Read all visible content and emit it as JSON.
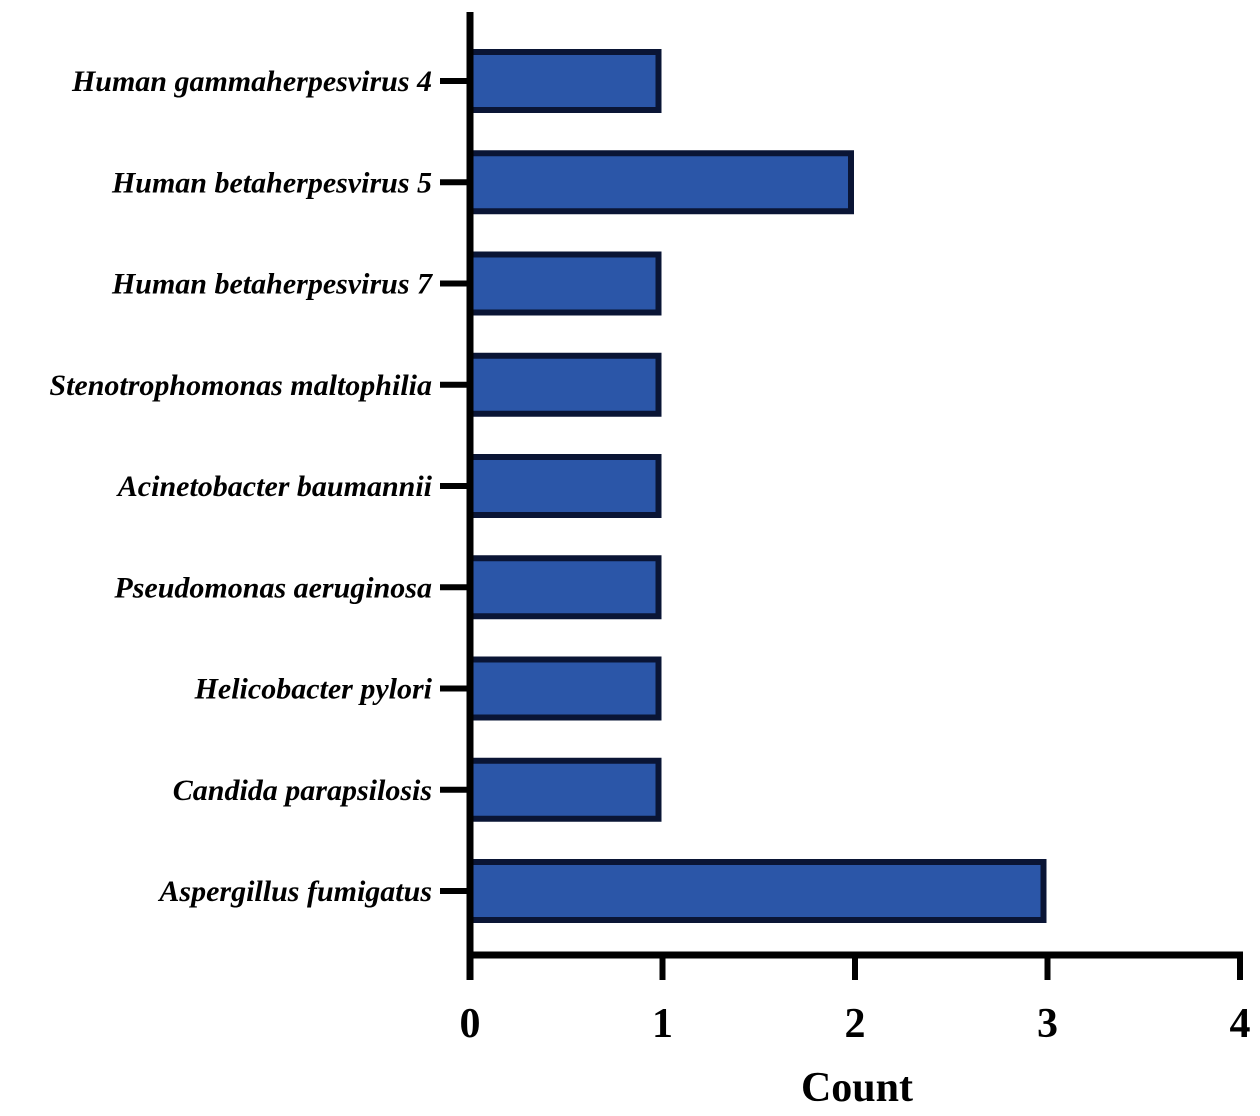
{
  "chart_data": {
    "type": "bar",
    "orientation": "horizontal",
    "categories": [
      "Human gammaherpesvirus 4",
      "Human betaherpesvirus 5",
      "Human betaherpesvirus 7",
      "Stenotrophomonas maltophilia",
      "Acinetobacter baumannii",
      "Pseudomonas aeruginosa",
      "Helicobacter pylori",
      "Candida parapsilosis",
      "Aspergillus fumigatus"
    ],
    "values": [
      1,
      2,
      1,
      1,
      1,
      1,
      1,
      1,
      3
    ],
    "title": "",
    "xlabel": "Count",
    "ylabel": "",
    "xlim": [
      0,
      4
    ],
    "xticks": [
      "0",
      "1",
      "2",
      "3",
      "4"
    ],
    "grid": false,
    "legend": "none",
    "colors": {
      "bar_fill": "#2b56a8",
      "bar_edge": "#0a1535",
      "axis": "#000000"
    }
  }
}
